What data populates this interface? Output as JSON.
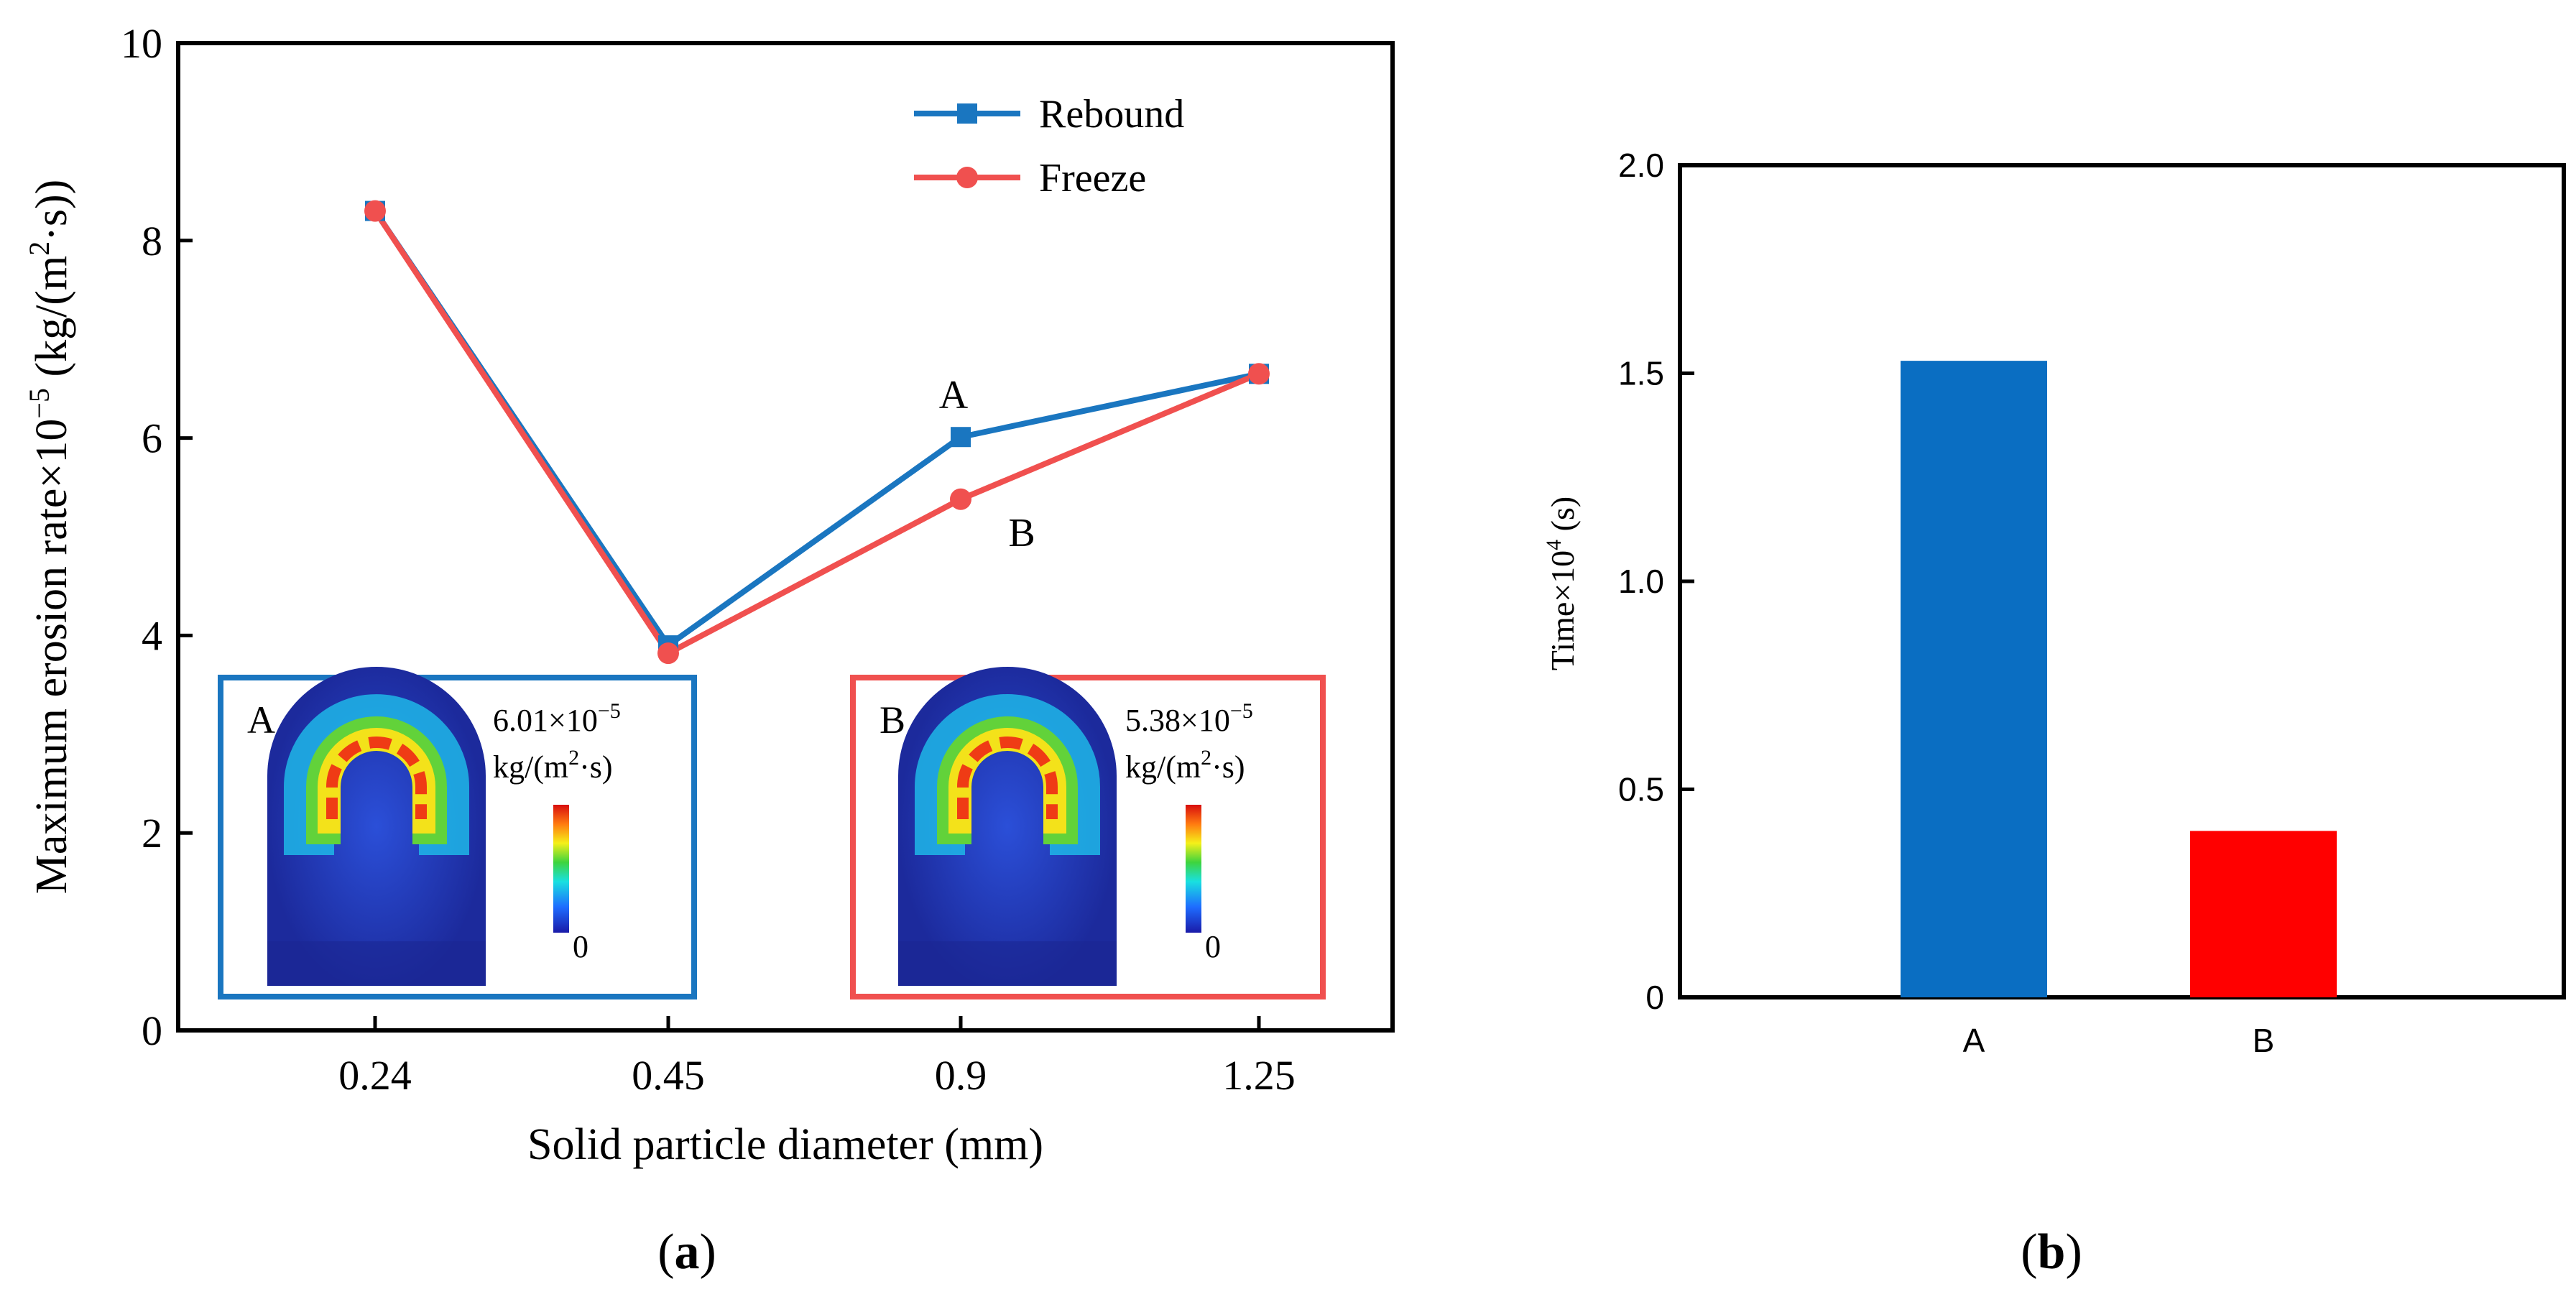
{
  "chart_data": [
    {
      "panel": "a",
      "type": "line",
      "caption_letter": "a",
      "ylabel": "Maximum erosion rate×10",
      "ylabel_exp": "−5",
      "ylabel_unit": " (kg/(m",
      "ylabel_unit_exp": "2",
      "ylabel_unit_tail": "·s))",
      "xlabel": "Solid particle diameter (mm)",
      "categories": [
        "0.24",
        "0.45",
        "0.9",
        "1.25"
      ],
      "ylim": [
        0,
        10
      ],
      "yticks": [
        "0",
        "2",
        "4",
        "6",
        "8",
        "10"
      ],
      "legend_position": "top-right",
      "series": [
        {
          "name": "Rebound",
          "color": "#1a76c0",
          "marker": "square",
          "values": [
            8.3,
            3.9,
            6.01,
            6.65
          ]
        },
        {
          "name": "Freeze",
          "color": "#f0504f",
          "marker": "circle",
          "values": [
            8.3,
            3.82,
            5.38,
            6.65
          ]
        }
      ],
      "annotations": [
        {
          "text": "A",
          "series": "Rebound",
          "category": "0.9",
          "placement": "above"
        },
        {
          "text": "B",
          "series": "Freeze",
          "category": "0.9",
          "placement": "below-right"
        }
      ],
      "insets": [
        {
          "id": "A",
          "letter": "A",
          "border_color": "#1a76c0",
          "value_prefix": "6.01×10",
          "value_exp": "−5",
          "unit_prefix": "kg/(m",
          "unit_exp": "2",
          "unit_tail": "·s)",
          "scale_min": "0"
        },
        {
          "id": "B",
          "letter": "B",
          "border_color": "#f0504f",
          "value_prefix": "5.38×10",
          "value_exp": "−5",
          "unit_prefix": "kg/(m",
          "unit_exp": "2",
          "unit_tail": "·s)",
          "scale_min": "0"
        }
      ]
    },
    {
      "panel": "b",
      "type": "bar",
      "caption_letter": "b",
      "ylabel": "Time×10",
      "ylabel_exp": "4",
      "ylabel_unit": " (s)",
      "categories": [
        "A",
        "B"
      ],
      "values": [
        1.53,
        0.4
      ],
      "colors": [
        "#0a6ec2",
        "#ff0000"
      ],
      "ylim": [
        0,
        2.0
      ],
      "yticks": [
        "0",
        "0.5",
        "1.0",
        "1.5",
        "2.0"
      ]
    }
  ]
}
